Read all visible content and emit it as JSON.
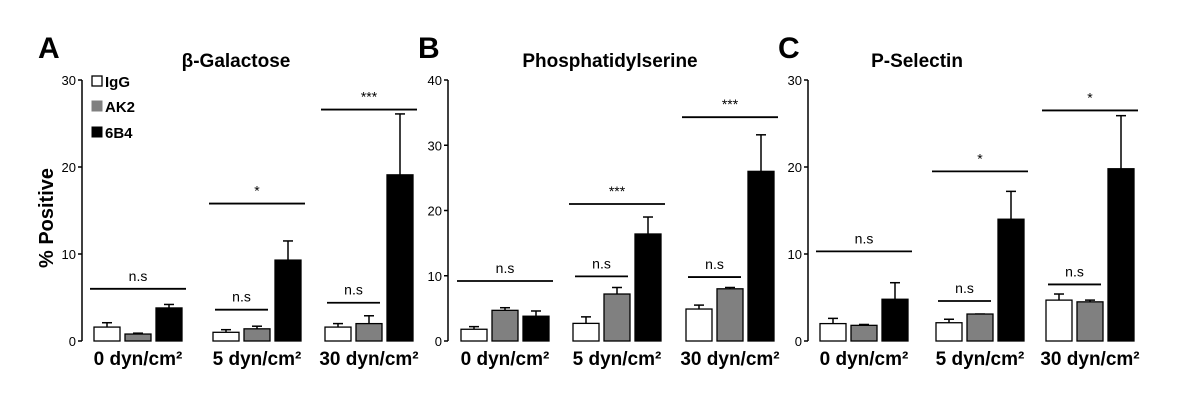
{
  "figure": {
    "ylabel": "% Positive",
    "legend": [
      {
        "name": "IgG",
        "color": "#ffffff"
      },
      {
        "name": "AK2",
        "color": "#808080"
      },
      {
        "name": "6B4",
        "color": "#000000"
      }
    ]
  },
  "chart_data": [
    {
      "type": "bar",
      "panel": "A",
      "title": "β-Galactose",
      "categories": [
        "0 dyn/cm²",
        "5 dyn/cm²",
        "30 dyn/cm²"
      ],
      "ylim": [
        0,
        30
      ],
      "yticks": [
        0,
        10,
        20,
        30
      ],
      "series": [
        {
          "name": "IgG",
          "values": [
            1.6,
            1.0,
            1.6
          ],
          "errors": [
            0.5,
            0.3,
            0.4
          ]
        },
        {
          "name": "AK2",
          "values": [
            0.8,
            1.4,
            2.0
          ],
          "errors": [
            0.1,
            0.3,
            0.9
          ]
        },
        {
          "name": "6B4",
          "values": [
            3.8,
            9.3,
            19.1
          ],
          "errors": [
            0.4,
            2.2,
            7.0
          ]
        }
      ],
      "comparisons": [
        {
          "category": 0,
          "label": "n.s",
          "y": 6.0,
          "span": "all"
        },
        {
          "category": 1,
          "label": "n.s",
          "y": 3.6,
          "span": "pair"
        },
        {
          "category": 1,
          "label": "*",
          "y": 15.8,
          "span": "all"
        },
        {
          "category": 2,
          "label": "n.s",
          "y": 4.4,
          "span": "pair"
        },
        {
          "category": 2,
          "label": "***",
          "y": 26.6,
          "span": "all"
        }
      ]
    },
    {
      "type": "bar",
      "panel": "B",
      "title": "Phosphatidylserine",
      "categories": [
        "0 dyn/cm²",
        "5 dyn/cm²",
        "30 dyn/cm²"
      ],
      "ylim": [
        0,
        40
      ],
      "yticks": [
        0,
        10,
        20,
        30,
        40
      ],
      "series": [
        {
          "name": "IgG",
          "values": [
            1.8,
            2.7,
            4.9
          ],
          "errors": [
            0.4,
            1.0,
            0.6
          ]
        },
        {
          "name": "AK2",
          "values": [
            4.7,
            7.2,
            8.0
          ],
          "errors": [
            0.4,
            1.0,
            0.2
          ]
        },
        {
          "name": "6B4",
          "values": [
            3.8,
            16.4,
            26.0
          ],
          "errors": [
            0.8,
            2.6,
            5.6
          ]
        }
      ],
      "comparisons": [
        {
          "category": 0,
          "label": "n.s",
          "y": 9.2,
          "span": "all"
        },
        {
          "category": 1,
          "label": "n.s",
          "y": 9.9,
          "span": "pair"
        },
        {
          "category": 1,
          "label": "***",
          "y": 21.0,
          "span": "all"
        },
        {
          "category": 2,
          "label": "n.s",
          "y": 9.8,
          "span": "pair"
        },
        {
          "category": 2,
          "label": "***",
          "y": 34.3,
          "span": "all"
        }
      ]
    },
    {
      "type": "bar",
      "panel": "C",
      "title": "P-Selectin",
      "categories": [
        "0 dyn/cm²",
        "5 dyn/cm²",
        "30 dyn/cm²"
      ],
      "ylim": [
        0,
        30
      ],
      "yticks": [
        0,
        10,
        20,
        30
      ],
      "series": [
        {
          "name": "IgG",
          "values": [
            2.0,
            2.1,
            4.7
          ],
          "errors": [
            0.6,
            0.4,
            0.7
          ]
        },
        {
          "name": "AK2",
          "values": [
            1.8,
            3.1,
            4.5
          ],
          "errors": [
            0.1,
            0.0,
            0.2
          ]
        },
        {
          "name": "6B4",
          "values": [
            4.8,
            14.0,
            19.8
          ],
          "errors": [
            1.9,
            3.2,
            6.1
          ]
        }
      ],
      "comparisons": [
        {
          "category": 0,
          "label": "n.s",
          "y": 10.3,
          "span": "all"
        },
        {
          "category": 1,
          "label": "n.s",
          "y": 4.6,
          "span": "pair"
        },
        {
          "category": 1,
          "label": "*",
          "y": 19.5,
          "span": "all"
        },
        {
          "category": 2,
          "label": "n.s",
          "y": 6.5,
          "span": "pair"
        },
        {
          "category": 2,
          "label": "*",
          "y": 26.5,
          "span": "all"
        }
      ]
    }
  ]
}
